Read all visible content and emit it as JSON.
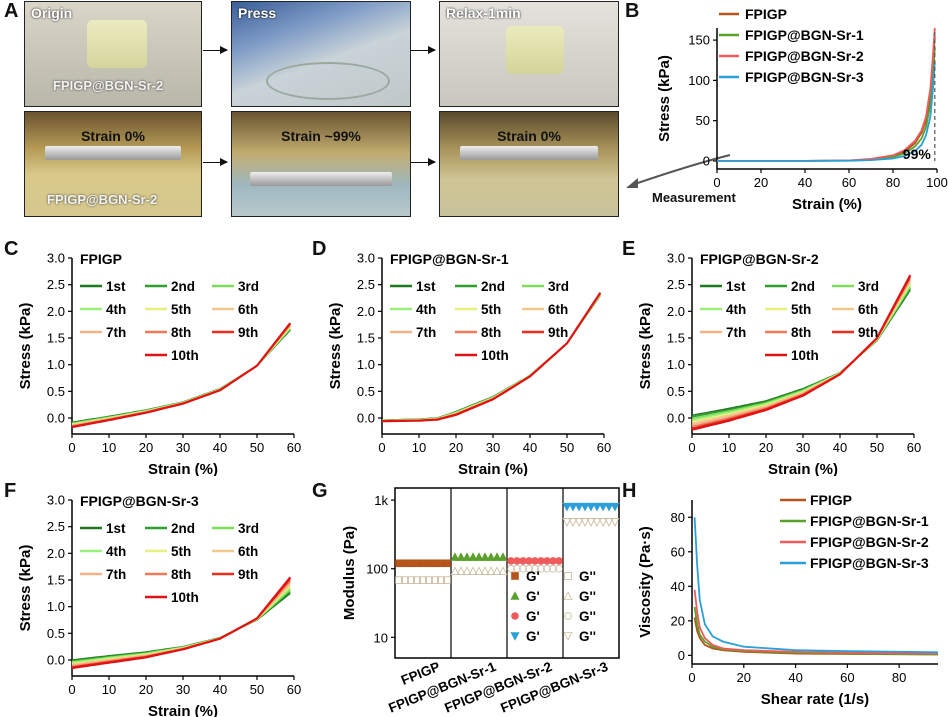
{
  "panel_labels": {
    "A": "A",
    "B": "B",
    "C": "C",
    "D": "D",
    "E": "E",
    "F": "F",
    "G": "G",
    "H": "H"
  },
  "photos": {
    "top": [
      {
        "title": "Origin",
        "sample": "FPIGP@BGN-Sr-2"
      },
      {
        "title": "Press"
      },
      {
        "title": "Relax-1min"
      }
    ],
    "bottom": [
      {
        "strain": "Strain 0%",
        "sample": "FPIGP@BGN-Sr-2"
      },
      {
        "strain": "Strain ~99%"
      },
      {
        "strain": "Strain 0%"
      }
    ],
    "measurement_label": "Measurement"
  },
  "colors": {
    "FPIGP": "#b5541b",
    "Sr1": "#5aa02c",
    "Sr2": "#ef5b5b",
    "Sr3": "#2a9fd8",
    "cycles": [
      "#1f7a1f",
      "#2f9e2f",
      "#7ddc58",
      "#9af07a",
      "#e6f07a",
      "#f2c98a",
      "#f5b38a",
      "#ef7a5a",
      "#e82e1f",
      "#e01212"
    ]
  },
  "chart_data": [
    {
      "panel": "B",
      "type": "line",
      "xlabel": "Strain (%)",
      "ylabel": "Stress (kPa)",
      "xlim": [
        0,
        100
      ],
      "ylim": [
        -10,
        165
      ],
      "xticks": [
        0,
        20,
        40,
        60,
        80,
        100
      ],
      "yticks": [
        0,
        50,
        100,
        150
      ],
      "annotation": "99%",
      "vline": 99,
      "series": [
        {
          "name": "FPIGP",
          "x": [
            0,
            40,
            60,
            70,
            80,
            85,
            90,
            93,
            95,
            97,
            98,
            99
          ],
          "y": [
            0,
            0,
            0.5,
            2,
            6,
            11,
            22,
            35,
            50,
            80,
            110,
            155
          ]
        },
        {
          "name": "FPIGP@BGN-Sr-1",
          "x": [
            0,
            40,
            60,
            70,
            80,
            85,
            90,
            93,
            95,
            97,
            98,
            99
          ],
          "y": [
            0,
            0,
            0.4,
            1.5,
            5,
            9,
            18,
            28,
            42,
            70,
            100,
            140
          ]
        },
        {
          "name": "FPIGP@BGN-Sr-2",
          "x": [
            0,
            40,
            60,
            70,
            80,
            85,
            90,
            93,
            95,
            97,
            98,
            99
          ],
          "y": [
            0,
            0,
            0.5,
            2.5,
            7,
            13,
            25,
            38,
            55,
            90,
            125,
            165
          ]
        },
        {
          "name": "FPIGP@BGN-Sr-3",
          "x": [
            0,
            40,
            60,
            70,
            80,
            85,
            90,
            93,
            95,
            97,
            98,
            99
          ],
          "y": [
            0,
            0,
            0.3,
            1,
            3,
            6,
            12,
            20,
            32,
            55,
            85,
            122
          ]
        }
      ]
    },
    {
      "panel": "C",
      "title": "FPIGP",
      "type": "line",
      "xlabel": "Strain (%)",
      "ylabel": "Stress (kPa)",
      "xlim": [
        0,
        60
      ],
      "ylim": [
        -0.3,
        3.0
      ],
      "xticks": [
        0,
        10,
        20,
        30,
        40,
        50,
        60
      ],
      "yticks": [
        "0.0",
        "0.5",
        "1.0",
        "1.5",
        "2.0",
        "2.5",
        "3.0"
      ],
      "legend": [
        "1st",
        "2nd",
        "3rd",
        "4th",
        "5th",
        "6th",
        "7th",
        "8th",
        "9th",
        "10th"
      ],
      "series": [
        {
          "name": "1st",
          "x": [
            0,
            10,
            20,
            30,
            40,
            50,
            59
          ],
          "y": [
            -0.08,
            0.03,
            0.15,
            0.3,
            0.55,
            0.98,
            1.65
          ]
        },
        {
          "name": "10th",
          "x": [
            0,
            10,
            20,
            30,
            40,
            50,
            59
          ],
          "y": [
            -0.17,
            -0.04,
            0.1,
            0.27,
            0.52,
            0.98,
            1.78
          ]
        }
      ]
    },
    {
      "panel": "D",
      "title": "FPIGP@BGN-Sr-1",
      "type": "line",
      "xlabel": "Strain (%)",
      "ylabel": "Stress (kPa)",
      "xlim": [
        0,
        60
      ],
      "ylim": [
        -0.3,
        3.0
      ],
      "xticks": [
        0,
        10,
        20,
        30,
        40,
        50,
        60
      ],
      "yticks": [
        "0.0",
        "0.5",
        "1.0",
        "1.5",
        "2.0",
        "2.5",
        "3.0"
      ],
      "legend": [
        "1st",
        "2nd",
        "3rd",
        "4th",
        "5th",
        "6th",
        "7th",
        "8th",
        "9th",
        "10th"
      ],
      "series": [
        {
          "name": "1st",
          "x": [
            0,
            10,
            15,
            20,
            30,
            40,
            50,
            59
          ],
          "y": [
            -0.04,
            -0.02,
            0.0,
            0.12,
            0.4,
            0.8,
            1.4,
            2.3
          ]
        },
        {
          "name": "10th",
          "x": [
            0,
            10,
            15,
            20,
            30,
            40,
            50,
            59
          ],
          "y": [
            -0.06,
            -0.05,
            -0.03,
            0.06,
            0.35,
            0.78,
            1.4,
            2.35
          ]
        }
      ]
    },
    {
      "panel": "E",
      "title": "FPIGP@BGN-Sr-2",
      "type": "line",
      "xlabel": "Strain (%)",
      "ylabel": "Stress (kPa)",
      "xlim": [
        0,
        60
      ],
      "ylim": [
        -0.3,
        3.0
      ],
      "xticks": [
        0,
        10,
        20,
        30,
        40,
        50,
        60
      ],
      "yticks": [
        "0.0",
        "0.5",
        "1.0",
        "1.5",
        "2.0",
        "2.5",
        "3.0"
      ],
      "legend": [
        "1st",
        "2nd",
        "3rd",
        "4th",
        "5th",
        "6th",
        "7th",
        "8th",
        "9th",
        "10th"
      ],
      "series": [
        {
          "name": "1st",
          "x": [
            0,
            10,
            20,
            30,
            40,
            50,
            59
          ],
          "y": [
            0.05,
            0.18,
            0.32,
            0.55,
            0.85,
            1.45,
            2.4
          ]
        },
        {
          "name": "10th",
          "x": [
            0,
            10,
            20,
            30,
            40,
            50,
            59
          ],
          "y": [
            -0.22,
            -0.05,
            0.15,
            0.42,
            0.82,
            1.5,
            2.68
          ]
        }
      ]
    },
    {
      "panel": "F",
      "title": "FPIGP@BGN-Sr-3",
      "type": "line",
      "xlabel": "Strain (%)",
      "ylabel": "Stress (kPa)",
      "xlim": [
        0,
        60
      ],
      "ylim": [
        -0.3,
        3.0
      ],
      "xticks": [
        0,
        10,
        20,
        30,
        40,
        50,
        60
      ],
      "yticks": [
        "0.0",
        "0.5",
        "1.0",
        "1.5",
        "2.0",
        "2.5",
        "3.0"
      ],
      "legend": [
        "1st",
        "2nd",
        "3rd",
        "4th",
        "5th",
        "6th",
        "7th",
        "8th",
        "9th",
        "10th"
      ],
      "series": [
        {
          "name": "1st",
          "x": [
            0,
            10,
            20,
            30,
            40,
            50,
            59
          ],
          "y": [
            0.0,
            0.08,
            0.15,
            0.25,
            0.42,
            0.75,
            1.25
          ]
        },
        {
          "name": "10th",
          "x": [
            0,
            10,
            20,
            30,
            40,
            50,
            59
          ],
          "y": [
            -0.15,
            -0.05,
            0.05,
            0.2,
            0.4,
            0.78,
            1.55
          ]
        }
      ]
    },
    {
      "panel": "G",
      "type": "scatter",
      "ylabel": "Modulus (Pa)",
      "yscale": "log",
      "ylim": [
        5,
        1500
      ],
      "yticks": [
        "10",
        "100",
        "1k"
      ],
      "categories": [
        "FPIGP",
        "FPIGP@BGN-Sr-1",
        "FPIGP@BGN-Sr-2",
        "FPIGP@BGN-Sr-3"
      ],
      "legend": [
        "G'",
        "G''",
        "G'",
        "G''",
        "G'",
        "G''",
        "G'",
        "G''"
      ],
      "series": [
        {
          "name": "G'",
          "values": [
            120,
            148,
            130,
            800
          ]
        },
        {
          "name": "G''",
          "values": [
            68,
            92,
            100,
            480
          ]
        }
      ]
    },
    {
      "panel": "H",
      "type": "line",
      "xlabel": "Shear rate (1/s)",
      "ylabel": "Viscosity (Pa·s)",
      "xlim": [
        0,
        95
      ],
      "ylim": [
        -5,
        90
      ],
      "xticks": [
        0,
        20,
        40,
        60,
        80
      ],
      "yticks": [
        0,
        20,
        40,
        60,
        80
      ],
      "series": [
        {
          "name": "FPIGP",
          "x": [
            1,
            2,
            3,
            5,
            8,
            12,
            20,
            40,
            60,
            95
          ],
          "y": [
            22,
            14,
            10,
            6,
            4,
            3,
            2,
            1,
            0.8,
            0.5
          ]
        },
        {
          "name": "FPIGP@BGN-Sr-1",
          "x": [
            1,
            2,
            3,
            5,
            8,
            12,
            20,
            40,
            60,
            95
          ],
          "y": [
            28,
            18,
            12,
            8,
            5,
            3.5,
            2.5,
            1.5,
            1,
            0.6
          ]
        },
        {
          "name": "FPIGP@BGN-Sr-2",
          "x": [
            1,
            2,
            3,
            5,
            8,
            12,
            20,
            40,
            60,
            95
          ],
          "y": [
            38,
            25,
            16,
            10,
            6,
            4,
            3,
            2,
            1.5,
            1
          ]
        },
        {
          "name": "FPIGP@BGN-Sr-3",
          "x": [
            1,
            2,
            3,
            5,
            8,
            12,
            20,
            40,
            60,
            95
          ],
          "y": [
            80,
            52,
            32,
            18,
            11,
            8,
            5,
            3,
            2.5,
            1.8
          ]
        }
      ]
    }
  ]
}
